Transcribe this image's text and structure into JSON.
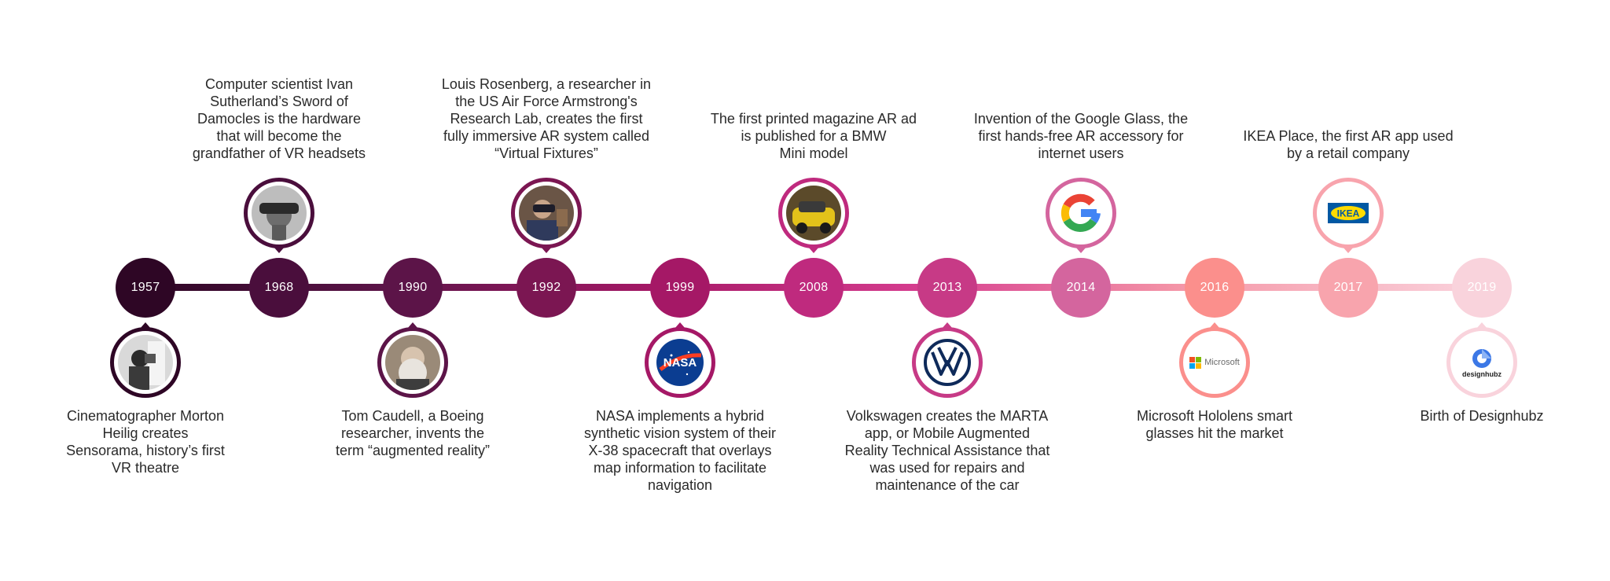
{
  "events": [
    {
      "year": "1957",
      "side": "bottom",
      "icon": "vr-theatre-photo-icon",
      "color": "#2e0625",
      "text_color": "#ffffff",
      "caption": "Cinematographer Morton\nHeilig creates\nSensorama, history’s first\nVR theatre"
    },
    {
      "year": "1968",
      "side": "top",
      "icon": "headset-photo-icon",
      "color": "#4a0e3c",
      "text_color": "#ffffff",
      "caption": "Computer scientist Ivan\nSutherland’s Sword of\nDamocles is the hardware\nthat will become the\ngrandfather of VR headsets"
    },
    {
      "year": "1990",
      "side": "bottom",
      "icon": "researcher-photo-icon",
      "color": "#5c1448",
      "text_color": "#ffffff",
      "caption": "Tom Caudell, a Boeing\nresearcher, invents the\nterm “augmented reality”"
    },
    {
      "year": "1992",
      "side": "top",
      "icon": "virtual-fixtures-photo-icon",
      "color": "#7b1652",
      "text_color": "#ffffff",
      "caption": "Louis Rosenberg, a researcher in\nthe US Air Force Armstrong's\nResearch Lab, creates the first\nfully immersive AR system called\n“Virtual Fixtures”"
    },
    {
      "year": "1999",
      "side": "bottom",
      "icon": "nasa-logo-icon",
      "color": "#a51866",
      "text_color": "#ffffff",
      "caption": "NASA implements a hybrid\nsynthetic vision system of their\nX-38 spacecraft that overlays\nmap information to facilitate\nnavigation"
    },
    {
      "year": "2008",
      "side": "top",
      "icon": "bmw-mini-photo-icon",
      "color": "#bf2a7e",
      "text_color": "#ffffff",
      "caption": "The first printed magazine AR ad\nis published for a BMW\nMini model"
    },
    {
      "year": "2013",
      "side": "bottom",
      "icon": "volkswagen-logo-icon",
      "color": "#c73a86",
      "text_color": "#ffffff",
      "caption": "Volkswagen creates the MARTA\napp, or Mobile Augmented\nReality Technical Assistance that\nwas used for repairs and\nmaintenance of the car"
    },
    {
      "year": "2014",
      "side": "top",
      "icon": "google-logo-icon",
      "color": "#d4659e",
      "text_color": "#ffffff",
      "caption": "Invention of the Google Glass, the\nfirst hands-free AR accessory for\ninternet users"
    },
    {
      "year": "2016",
      "side": "bottom",
      "icon": "microsoft-logo-icon",
      "color": "#fb8f8c",
      "text_color": "#ffffff",
      "logo_text": "Microsoft",
      "caption": "Microsoft Hololens smart\nglasses hit the market"
    },
    {
      "year": "2017",
      "side": "top",
      "icon": "ikea-logo-icon",
      "color": "#f8a4ad",
      "text_color": "#ffffff",
      "logo_text": "IKEA",
      "caption": "IKEA Place, the first AR app used\nby a retail company"
    },
    {
      "year": "2019",
      "side": "bottom",
      "icon": "designhubz-logo-icon",
      "color": "#f9d3dc",
      "text_color": "#ffffff",
      "logo_text": "designhubz",
      "caption": "Birth of Designhubz"
    }
  ]
}
